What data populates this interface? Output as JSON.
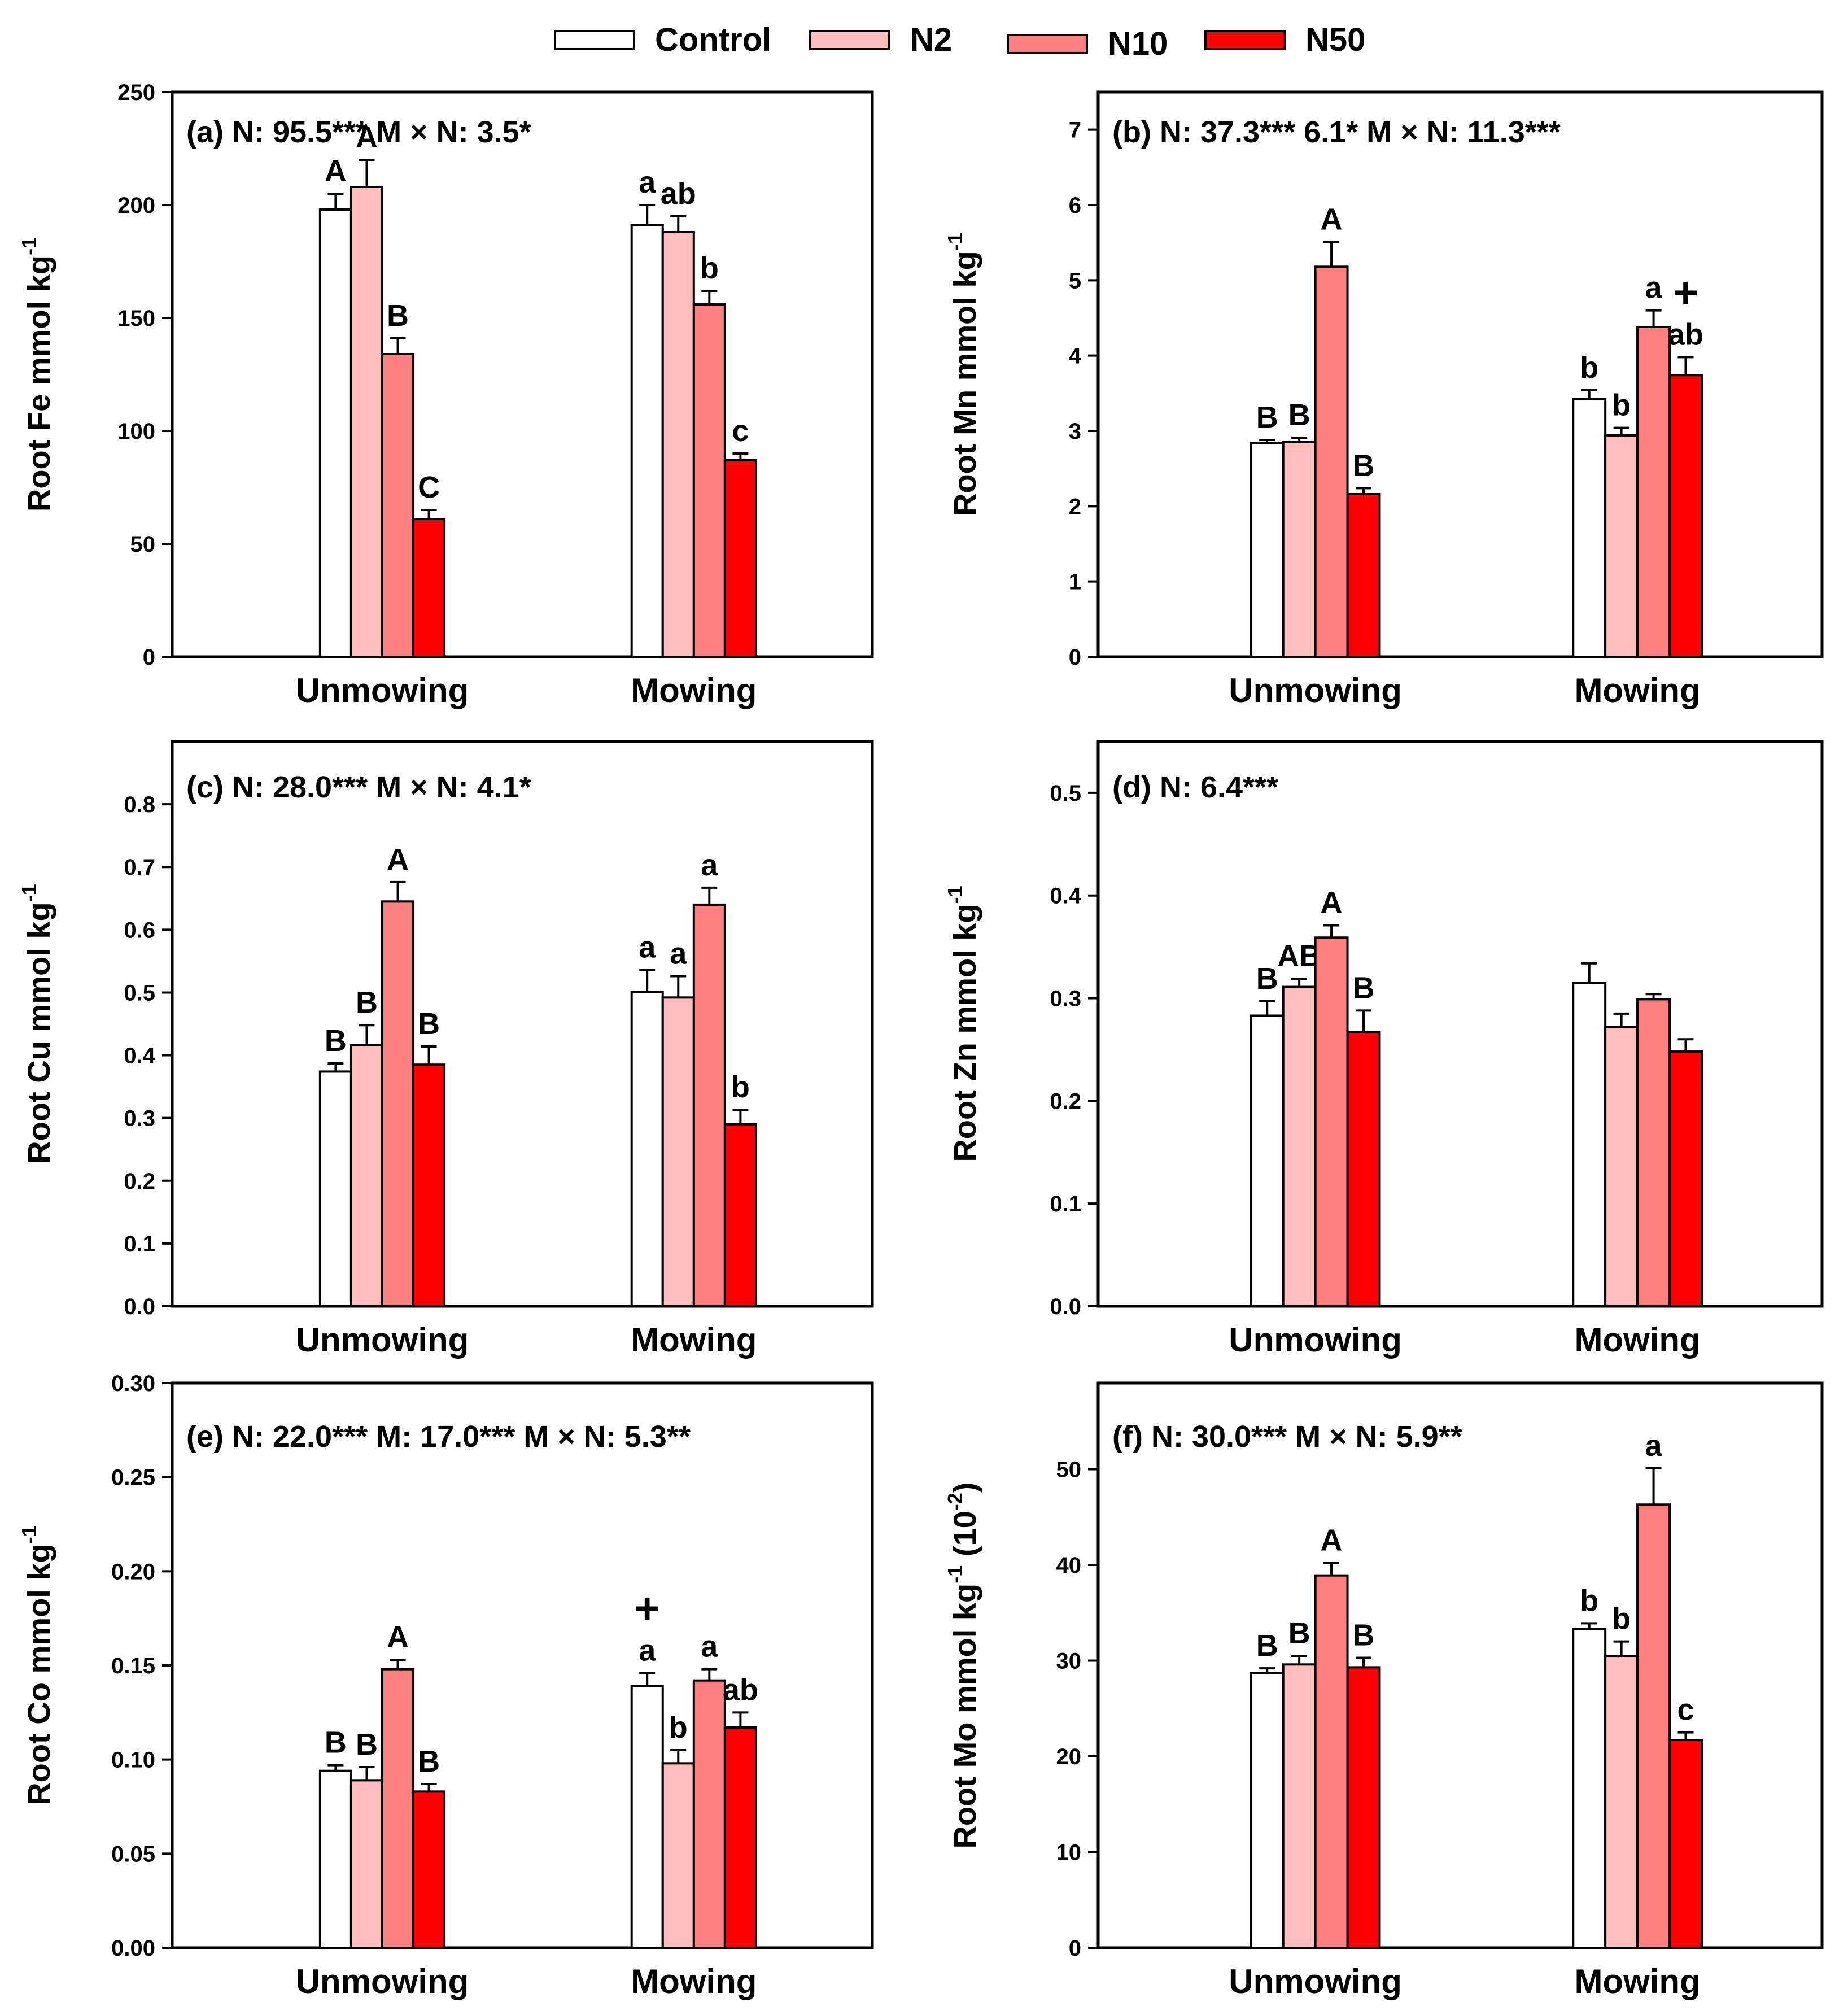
{
  "legend": [
    {
      "label": "Control",
      "color": "#ffffff"
    },
    {
      "label": "N2",
      "color": "#ffbdbd"
    },
    {
      "label": "N10",
      "color": "#ff8080"
    },
    {
      "label": "N50",
      "color": "#ff0000"
    }
  ],
  "chart_data": [
    {
      "id": "a",
      "type": "bar",
      "title": "(a) N: 95.5***  M × N: 3.5*",
      "ylabel": "Root Fe mmol kg",
      "ylabel_sup": "-1",
      "ylim": [
        0,
        250
      ],
      "yticks": [
        0,
        50,
        100,
        150,
        200,
        250
      ],
      "ytick_labels": [
        "0",
        "50",
        "100",
        "150",
        "200",
        "250"
      ],
      "categories": [
        "Unmowing",
        "Mowing"
      ],
      "series": [
        {
          "name": "Control",
          "values": [
            198,
            191
          ],
          "errors": [
            7,
            9
          ],
          "letters": [
            "A",
            "a"
          ]
        },
        {
          "name": "N2",
          "values": [
            208,
            188
          ],
          "errors": [
            12,
            7
          ],
          "letters": [
            "A",
            "ab"
          ]
        },
        {
          "name": "N10",
          "values": [
            134,
            156
          ],
          "errors": [
            7,
            6
          ],
          "letters": [
            "B",
            "b"
          ]
        },
        {
          "name": "N50",
          "values": [
            61,
            87
          ],
          "errors": [
            4,
            3
          ],
          "letters": [
            "C",
            "c"
          ]
        }
      ],
      "markers": []
    },
    {
      "id": "b",
      "type": "bar",
      "title": "(b) N: 37.3*** 6.1*  M × N: 11.3***",
      "ylabel": "Root Mn mmol kg",
      "ylabel_sup": "-1",
      "ylim": [
        0,
        7.5
      ],
      "yticks": [
        0,
        1,
        2,
        3,
        4,
        5,
        6,
        7
      ],
      "ytick_labels": [
        "0",
        "1",
        "2",
        "3",
        "4",
        "5",
        "6",
        "7"
      ],
      "categories": [
        "Unmowing",
        "Mowing"
      ],
      "series": [
        {
          "name": "Control",
          "values": [
            2.84,
            3.42
          ],
          "errors": [
            0.04,
            0.12
          ],
          "letters": [
            "B",
            "b"
          ]
        },
        {
          "name": "N2",
          "values": [
            2.85,
            2.94
          ],
          "errors": [
            0.06,
            0.1
          ],
          "letters": [
            "B",
            "b"
          ]
        },
        {
          "name": "N10",
          "values": [
            5.18,
            4.38
          ],
          "errors": [
            0.33,
            0.22
          ],
          "letters": [
            "A",
            "a"
          ]
        },
        {
          "name": "N50",
          "values": [
            2.16,
            3.74
          ],
          "errors": [
            0.08,
            0.24
          ],
          "letters": [
            "B",
            "ab"
          ]
        }
      ],
      "markers": [
        {
          "group": 1,
          "series": 3,
          "symbol": "+"
        }
      ]
    },
    {
      "id": "c",
      "type": "bar",
      "title": "(c) N: 28.0***  M × N: 4.1*",
      "ylabel": "Root Cu mmol kg",
      "ylabel_sup": "-1",
      "ylim": [
        0,
        0.9
      ],
      "yticks": [
        0,
        0.1,
        0.2,
        0.3,
        0.4,
        0.5,
        0.6,
        0.7,
        0.8
      ],
      "ytick_labels": [
        "0.0",
        "0.1",
        "0.2",
        "0.3",
        "0.4",
        "0.5",
        "0.6",
        "0.7",
        "0.8"
      ],
      "categories": [
        "Unmowing",
        "Mowing"
      ],
      "series": [
        {
          "name": "Control",
          "values": [
            0.374,
            0.501
          ],
          "errors": [
            0.013,
            0.035
          ],
          "letters": [
            "B",
            "a"
          ]
        },
        {
          "name": "N2",
          "values": [
            0.416,
            0.492
          ],
          "errors": [
            0.032,
            0.034
          ],
          "letters": [
            "B",
            "a"
          ]
        },
        {
          "name": "N10",
          "values": [
            0.645,
            0.64
          ],
          "errors": [
            0.031,
            0.027
          ],
          "letters": [
            "A",
            "a"
          ]
        },
        {
          "name": "N50",
          "values": [
            0.385,
            0.29
          ],
          "errors": [
            0.029,
            0.023
          ],
          "letters": [
            "B",
            "b"
          ]
        }
      ],
      "markers": []
    },
    {
      "id": "d",
      "type": "bar",
      "title": "(d) N: 6.4***",
      "ylabel": "Root Zn mmol kg",
      "ylabel_sup": "-1",
      "ylim": [
        0,
        0.55
      ],
      "yticks": [
        0,
        0.1,
        0.2,
        0.3,
        0.4,
        0.5
      ],
      "ytick_labels": [
        "0.0",
        "0.1",
        "0.2",
        "0.3",
        "0.4",
        "0.5"
      ],
      "categories": [
        "Unmowing",
        "Mowing"
      ],
      "series": [
        {
          "name": "Control",
          "values": [
            0.283,
            0.315
          ],
          "errors": [
            0.014,
            0.019
          ],
          "letters": [
            "B",
            ""
          ]
        },
        {
          "name": "N2",
          "values": [
            0.311,
            0.272
          ],
          "errors": [
            0.008,
            0.013
          ],
          "letters": [
            "AB",
            ""
          ]
        },
        {
          "name": "N10",
          "values": [
            0.359,
            0.299
          ],
          "errors": [
            0.012,
            0.005
          ],
          "letters": [
            "A",
            ""
          ]
        },
        {
          "name": "N50",
          "values": [
            0.267,
            0.248
          ],
          "errors": [
            0.021,
            0.012
          ],
          "letters": [
            "B",
            ""
          ]
        }
      ],
      "markers": []
    },
    {
      "id": "e",
      "type": "bar",
      "title": "(e) N: 22.0***  M: 17.0*** M × N: 5.3**",
      "ylabel": "Root Co mmol kg",
      "ylabel_sup": "-1",
      "ylim": [
        0,
        0.3
      ],
      "yticks": [
        0,
        0.05,
        0.1,
        0.15,
        0.2,
        0.25,
        0.3
      ],
      "ytick_labels": [
        "0.00",
        "0.05",
        "0.10",
        "0.15",
        "0.20",
        "0.25",
        "0.30"
      ],
      "categories": [
        "Unmowing",
        "Mowing"
      ],
      "series": [
        {
          "name": "Control",
          "values": [
            0.094,
            0.139
          ],
          "errors": [
            0.003,
            0.007
          ],
          "letters": [
            "B",
            "a"
          ]
        },
        {
          "name": "N2",
          "values": [
            0.089,
            0.098
          ],
          "errors": [
            0.007,
            0.007
          ],
          "letters": [
            "B",
            "b"
          ]
        },
        {
          "name": "N10",
          "values": [
            0.148,
            0.142
          ],
          "errors": [
            0.005,
            0.006
          ],
          "letters": [
            "A",
            "a"
          ]
        },
        {
          "name": "N50",
          "values": [
            0.083,
            0.117
          ],
          "errors": [
            0.004,
            0.008
          ],
          "letters": [
            "B",
            "ab"
          ]
        }
      ],
      "markers": [
        {
          "group": 1,
          "series": 0,
          "symbol": "+"
        }
      ]
    },
    {
      "id": "f",
      "type": "bar",
      "title": "(f) N: 30.0***  M × N: 5.9**",
      "ylabel": "Root Mo mmol kg",
      "ylabel_sup": "-1",
      "ylabel_suffix": " (10",
      "ylabel_suffix_sup": "-2",
      "ylabel_suffix_end": ")",
      "ylim": [
        0,
        59
      ],
      "yticks": [
        0,
        10,
        20,
        30,
        40,
        50
      ],
      "ytick_labels": [
        "0",
        "10",
        "20",
        "30",
        "40",
        "50"
      ],
      "categories": [
        "Unmowing",
        "Mowing"
      ],
      "series": [
        {
          "name": "Control",
          "values": [
            28.7,
            33.3
          ],
          "errors": [
            0.5,
            0.6
          ],
          "letters": [
            "B",
            "b"
          ]
        },
        {
          "name": "N2",
          "values": [
            29.6,
            30.5
          ],
          "errors": [
            0.9,
            1.5
          ],
          "letters": [
            "B",
            "b"
          ]
        },
        {
          "name": "N10",
          "values": [
            38.9,
            46.3
          ],
          "errors": [
            1.3,
            3.8
          ],
          "letters": [
            "A",
            "a"
          ]
        },
        {
          "name": "N50",
          "values": [
            29.3,
            21.7
          ],
          "errors": [
            1.0,
            0.8
          ],
          "letters": [
            "B",
            "c"
          ]
        }
      ],
      "markers": []
    }
  ]
}
